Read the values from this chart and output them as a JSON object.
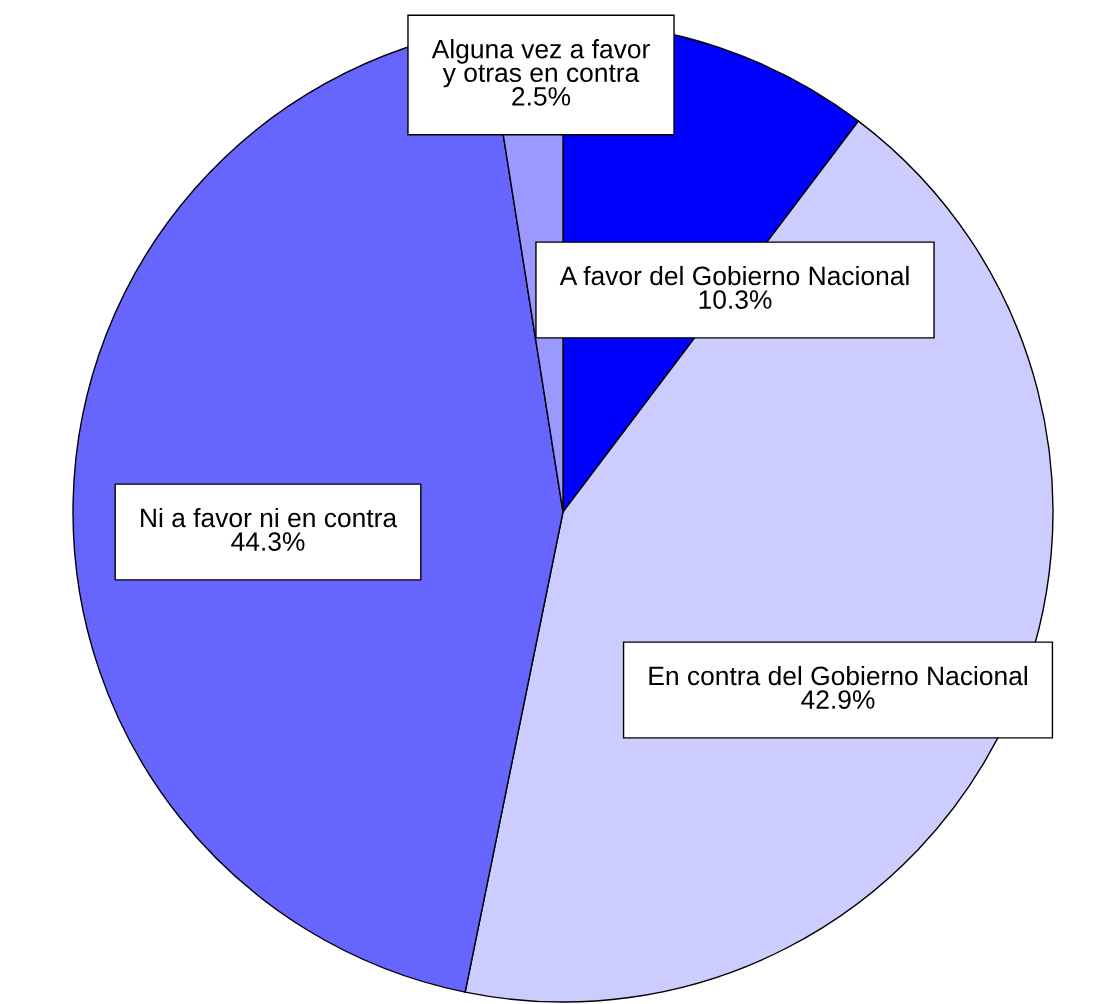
{
  "chart_data": {
    "type": "pie",
    "categories": [
      "A favor del Gobierno Nacional",
      "En contra del Gobierno Nacional",
      "Ni a favor ni en contra",
      "Alguna vez a favor\ny otras en contra"
    ],
    "values": [
      10.3,
      42.9,
      44.3,
      2.5
    ],
    "colors": [
      "#0000ff",
      "#ccccff",
      "#6666ff",
      "#9999ff"
    ],
    "value_labels": [
      "10.3%",
      "42.9%",
      "44.3%",
      "2.5%"
    ]
  }
}
